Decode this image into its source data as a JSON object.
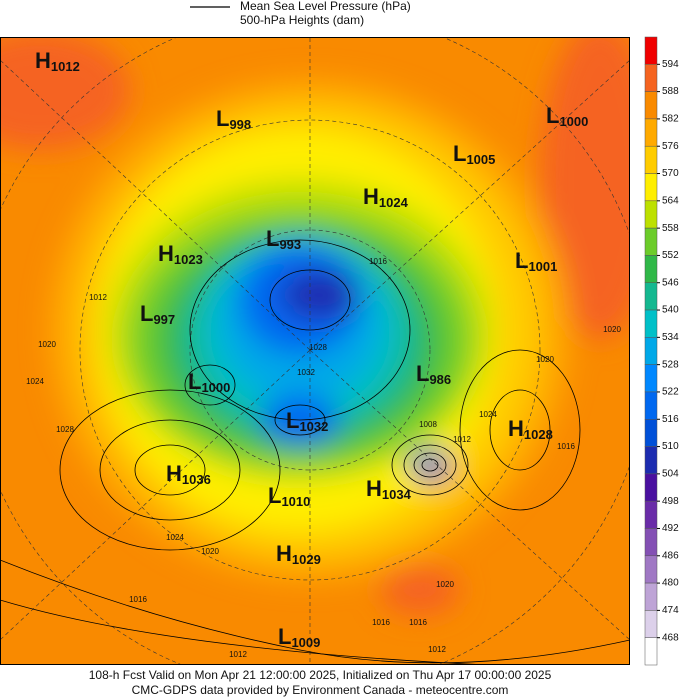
{
  "legend": {
    "items": [
      "Mean Sea Level Pressure (hPa)",
      "500-hPa Heights (dam)"
    ]
  },
  "colorbar": {
    "ticks": [
      594,
      588,
      582,
      576,
      570,
      564,
      558,
      552,
      546,
      540,
      534,
      528,
      522,
      516,
      510,
      504,
      498,
      492,
      486,
      480,
      474,
      468
    ],
    "colors": [
      "#f00000",
      "#f56420",
      "#f98a00",
      "#ffaa00",
      "#ffcc00",
      "#ffee00",
      "#bde000",
      "#6ccc2a",
      "#30b848",
      "#14b890",
      "#00c0c8",
      "#00a8e8",
      "#0088ff",
      "#0068f0",
      "#0050d8",
      "#1c2cb0",
      "#4a10a0",
      "#6a2ca8",
      "#8450b4",
      "#a078c4",
      "#bea4d6",
      "#dcd0ea",
      "#ffffff"
    ]
  },
  "centers": [
    {
      "letter": "H",
      "value": 1012
    },
    {
      "letter": "L",
      "value": 998
    },
    {
      "letter": "L",
      "value": 1000
    },
    {
      "letter": "L",
      "value": 1005
    },
    {
      "letter": "H",
      "value": 1024
    },
    {
      "letter": "L",
      "value": 993
    },
    {
      "letter": "H",
      "value": 1023
    },
    {
      "letter": "L",
      "value": 1001
    },
    {
      "letter": "L",
      "value": 997
    },
    {
      "letter": "L",
      "value": 1000
    },
    {
      "letter": "L",
      "value": 986
    },
    {
      "letter": "L",
      "value": 1032
    },
    {
      "letter": "H",
      "value": 1028
    },
    {
      "letter": "H",
      "value": 1036
    },
    {
      "letter": "H",
      "value": 1034
    },
    {
      "letter": "L",
      "value": 1010
    },
    {
      "letter": "H",
      "value": 1029
    },
    {
      "letter": "L",
      "value": 1009
    }
  ],
  "contour_labels": [
    1012,
    1020,
    1024,
    1028,
    1024,
    1020,
    1016,
    1016,
    1028,
    1032,
    1008,
    1012,
    1024,
    1016,
    1020,
    1020,
    1012,
    1016,
    1016,
    1020,
    1012
  ],
  "footer": [
    "108-h Fcst Valid on Mon Apr 21 12:00:00 2025, Initialized on Thu Apr 17 00:00:00 2025",
    "CMC-GDPS data provided by Environment Canada - meteocentre.com"
  ]
}
